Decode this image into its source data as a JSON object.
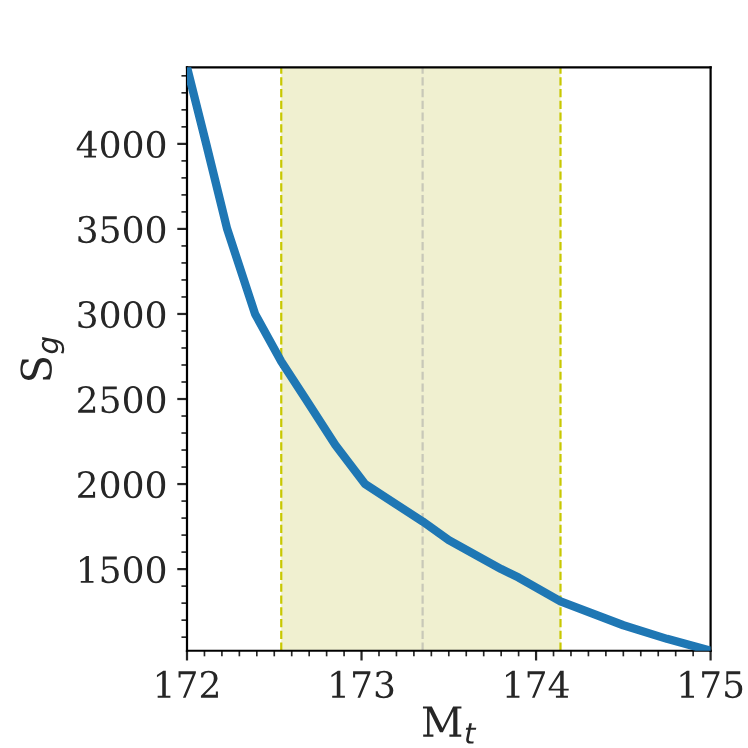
{
  "chart_data": {
    "type": "line",
    "xlabel": "M$_{t}$",
    "ylabel": "S$_{g}$",
    "series": [
      {
        "color": "#1f77b4",
        "x": [
          172,
          172.11,
          172.23,
          172.39,
          172.54,
          172.68,
          172.85,
          173.02,
          173.2,
          173.35,
          173.5,
          173.8,
          173.9,
          174.14,
          174.5,
          174.75,
          175
        ],
        "values": [
          4450,
          4000,
          3500,
          3000,
          2720,
          2500,
          2230,
          2000,
          1880,
          1780,
          1670,
          1500,
          1450,
          1310,
          1170,
          1090,
          1020
        ]
      }
    ],
    "xlim": [
      172,
      175
    ],
    "xticks": [
      172,
      173,
      174,
      175
    ],
    "ylim": [
      1020,
      4450
    ],
    "yticks": [
      1500,
      2000,
      2500,
      3000,
      3500,
      4000
    ],
    "bands": [
      {
        "axis": "x",
        "from": 172.54,
        "to": 174.14,
        "color": "#f0f0d0"
      }
    ],
    "ref_lines": [
      {
        "axis": "x",
        "value": 172.54,
        "color": "#c8c800",
        "line_style": "dashed"
      },
      {
        "axis": "x",
        "value": 173.35,
        "color": "#c8c8b8",
        "line_style": "dashed"
      },
      {
        "axis": "x",
        "value": 174.14,
        "color": "#c8c800",
        "line_style": "dashed"
      }
    ],
    "grid": false,
    "legend": false,
    "marker": "none",
    "line_style": "solid"
  }
}
